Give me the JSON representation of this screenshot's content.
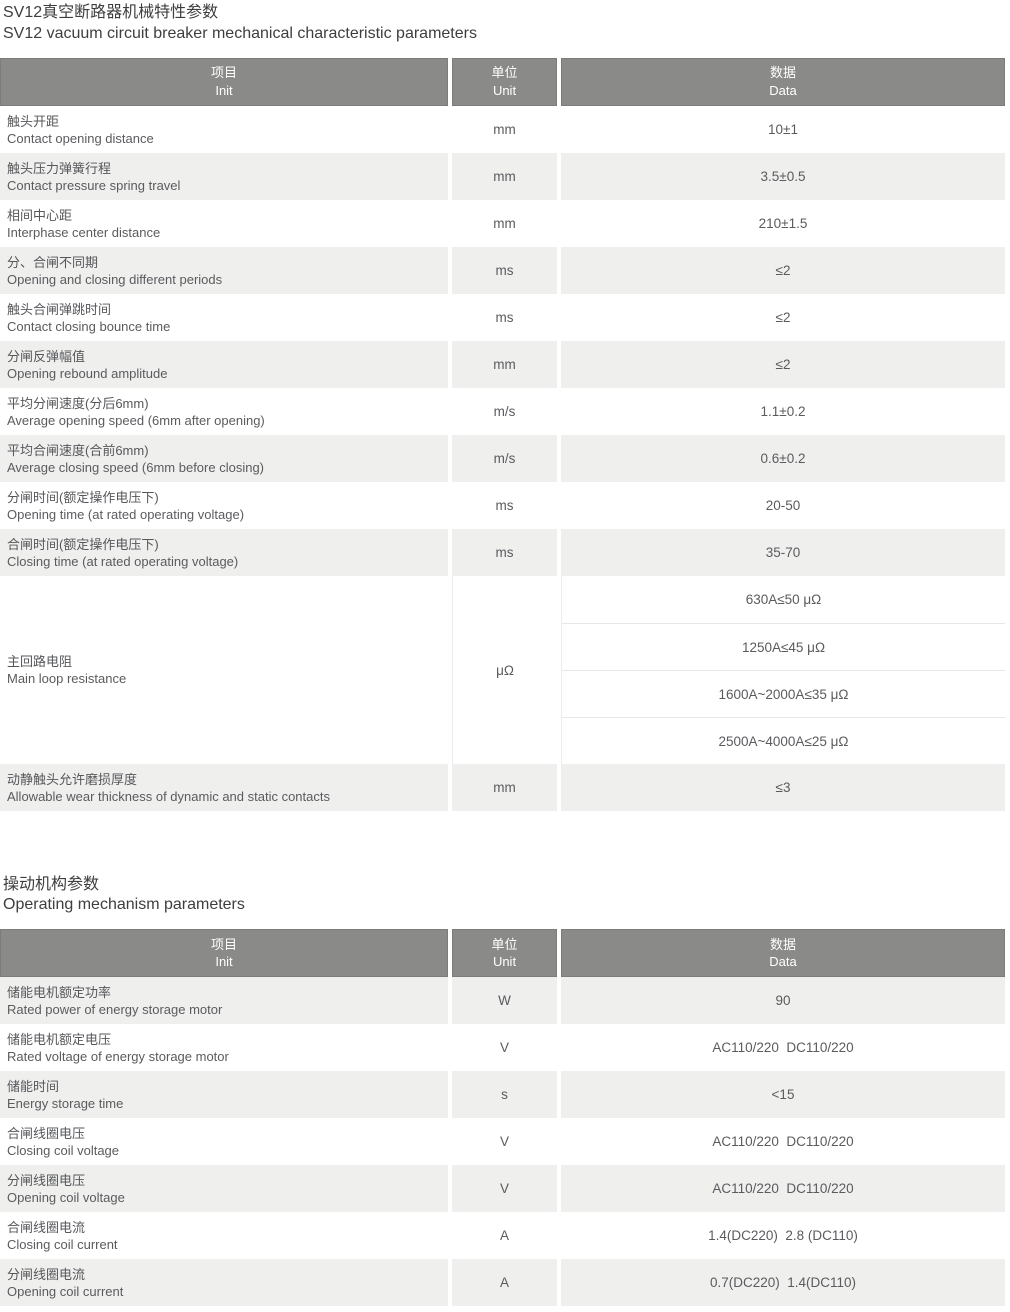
{
  "page": {
    "title_zh": "SV12真空断路器机械特性参数",
    "title_en": "SV12 vacuum circuit breaker mechanical characteristic parameters"
  },
  "section2": {
    "title_zh": "操动机构参数",
    "title_en": "Operating mechanism parameters"
  },
  "header": {
    "item_zh": "项目",
    "item_en": "Init",
    "unit_zh": "单位",
    "unit_en": "Unit",
    "data_zh": "数据",
    "data_en": "Data"
  },
  "colors": {
    "header_bg": "#8a8a89",
    "alt_row_bg": "#efefee",
    "text": "#56575a"
  },
  "table1": {
    "rows": [
      {
        "zh": "触头开距",
        "en": "Contact opening distance",
        "unit": "mm",
        "value": "10±1"
      },
      {
        "zh": "触头压力弹簧行程",
        "en": "Contact pressure spring travel",
        "unit": "mm",
        "value": "3.5±0.5"
      },
      {
        "zh": "相间中心距",
        "en": "Interphase center distance",
        "unit": "mm",
        "value": "210±1.5"
      },
      {
        "zh": "分、合闸不同期",
        "en": "Opening and closing different periods",
        "unit": "ms",
        "value": "≤2"
      },
      {
        "zh": "触头合闸弹跳时间",
        "en": "Contact closing bounce time",
        "unit": "ms",
        "value": "≤2"
      },
      {
        "zh": "分闸反弹幅值",
        "en": "Opening rebound amplitude",
        "unit": "mm",
        "value": "≤2"
      },
      {
        "zh": "平均分闸速度(分后6mm)",
        "en": "Average opening speed (6mm after opening)",
        "unit": "m/s",
        "value": "1.1±0.2"
      },
      {
        "zh": "平均合闸速度(合前6mm)",
        "en": "Average closing speed (6mm before closing)",
        "unit": "m/s",
        "value": "0.6±0.2"
      },
      {
        "zh": "分闸时间(额定操作电压下)",
        "en": "Opening time (at rated operating voltage)",
        "unit": "ms",
        "value": "20-50"
      },
      {
        "zh": "合闸时间(额定操作电压下)",
        "en": "Closing time (at rated operating voltage)",
        "unit": "ms",
        "value": "35-70"
      },
      {
        "zh": "主回路电阻",
        "en": "Main loop resistance",
        "unit": "μΩ",
        "values": [
          "630A≤50 μΩ",
          "1250A≤45 μΩ",
          "1600A~2000A≤35 μΩ",
          "2500A~4000A≤25 μΩ"
        ]
      },
      {
        "zh": "动静触头允许磨损厚度",
        "en": "Allowable wear thickness of dynamic and static contacts",
        "unit": "mm",
        "value": "≤3"
      }
    ]
  },
  "table2": {
    "rows": [
      {
        "zh": "储能电机额定功率",
        "en": "Rated power of energy storage motor",
        "unit": "W",
        "value": "90"
      },
      {
        "zh": "储能电机额定电压",
        "en": "Rated voltage of energy storage motor",
        "unit": "V",
        "value": "AC110/220  DC110/220"
      },
      {
        "zh": "储能时间",
        "en": "Energy storage time",
        "unit": "s",
        "value": "<15"
      },
      {
        "zh": "合闸线圈电压",
        "en": "Closing coil voltage",
        "unit": "V",
        "value": "AC110/220  DC110/220"
      },
      {
        "zh": "分闸线圈电压",
        "en": "Opening coil voltage",
        "unit": "V",
        "value": "AC110/220  DC110/220"
      },
      {
        "zh": "合闸线圈电流",
        "en": "Closing coil current",
        "unit": "A",
        "value": "1.4(DC220)  2.8 (DC110)"
      },
      {
        "zh": "分闸线圈电流",
        "en": "Opening coil current",
        "unit": "A",
        "value": "0.7(DC220)  1.4(DC110)"
      }
    ]
  }
}
